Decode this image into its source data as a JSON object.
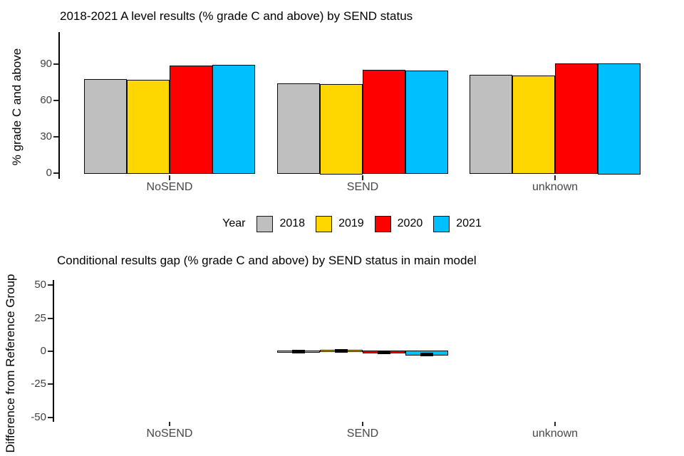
{
  "colors": {
    "y2018": "#bfbfbf",
    "y2019": "#ffd700",
    "y2020": "#ff0000",
    "y2021": "#00bfff",
    "bar_outline": "#0a0a0a",
    "axis_text": "#474747",
    "title_text": "#000000"
  },
  "legend": {
    "title": "Year",
    "entries": [
      {
        "label": "2018",
        "color": "#bfbfbf"
      },
      {
        "label": "2019",
        "color": "#ffd700"
      },
      {
        "label": "2020",
        "color": "#ff0000"
      },
      {
        "label": "2021",
        "color": "#00bfff"
      }
    ]
  },
  "chart_data": [
    {
      "type": "bar",
      "title": "2018-2021 A level results (% grade C and above) by SEND status",
      "xlabel": "",
      "ylabel": "% grade C and above",
      "categories": [
        "NoSEND",
        "SEND",
        "unknown"
      ],
      "series": [
        {
          "name": "2018",
          "color": "#bfbfbf",
          "values": [
            77,
            73.5,
            80.5
          ]
        },
        {
          "name": "2019",
          "color": "#ffd700",
          "values": [
            76,
            72.5,
            79.5
          ]
        },
        {
          "name": "2020",
          "color": "#ff0000",
          "values": [
            88,
            84.5,
            89.5
          ]
        },
        {
          "name": "2021",
          "color": "#00bfff",
          "values": [
            88.5,
            84,
            90
          ]
        }
      ],
      "yticks": [
        0,
        30,
        60,
        90
      ],
      "ylim": [
        0,
        117
      ],
      "grid": false,
      "legend_position": "bottom"
    },
    {
      "type": "bar",
      "title": "Conditional results gap (% grade C and above) by SEND status in main model",
      "xlabel": "",
      "ylabel": "Difference from Reference Group",
      "categories": [
        "NoSEND",
        "SEND",
        "unknown"
      ],
      "series": [
        {
          "name": "2018",
          "color": "#bfbfbf",
          "values": [
            null,
            -0.4,
            null
          ]
        },
        {
          "name": "2019",
          "color": "#ffd700",
          "values": [
            null,
            0.4,
            null
          ]
        },
        {
          "name": "2020",
          "color": "#ff0000",
          "values": [
            null,
            -0.9,
            null
          ]
        },
        {
          "name": "2021",
          "color": "#00bfff",
          "values": [
            null,
            -2.2,
            null
          ]
        }
      ],
      "yticks": [
        50,
        25,
        0,
        -25,
        -50
      ],
      "ylim": [
        -54,
        58
      ],
      "grid": false,
      "estimate_markers": true
    }
  ]
}
